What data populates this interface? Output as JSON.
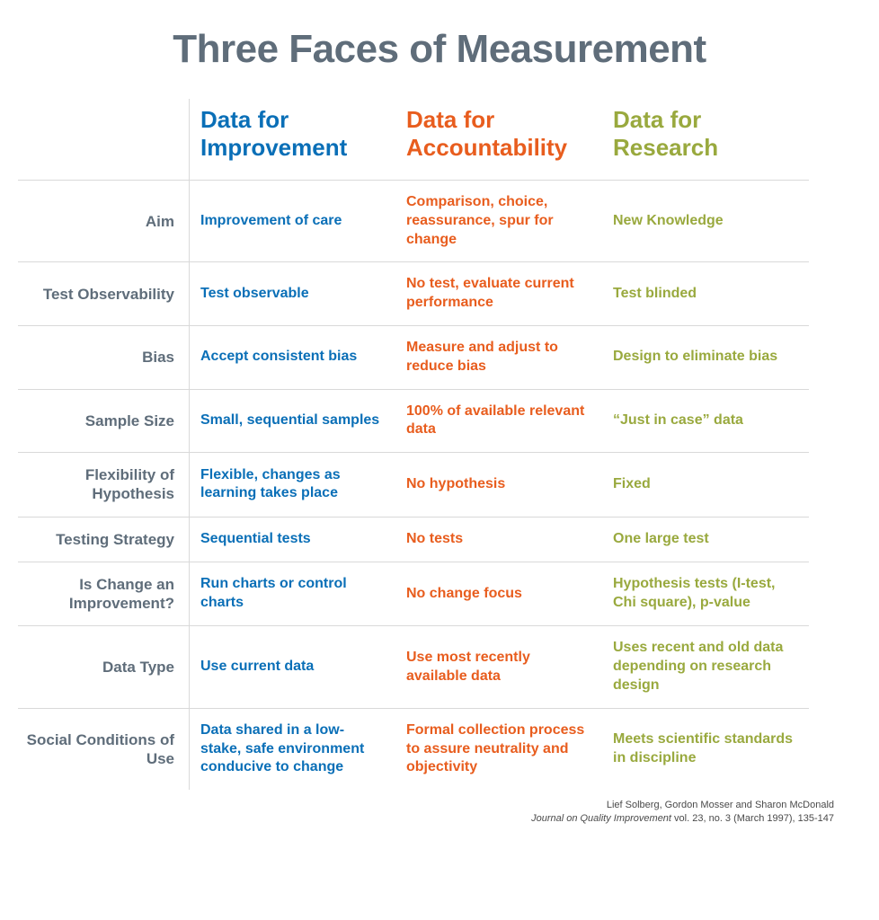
{
  "title": "Three Faces of Measurement",
  "colors": {
    "title": "#5f6d7a",
    "row_label": "#5f6d7a",
    "border": "#d9d9d9",
    "col1": "#0a6fb7",
    "col2": "#e85d1e",
    "col3": "#99a93e",
    "citation": "#4a4a4a"
  },
  "fonts": {
    "title_size": 44,
    "col_header_size": 26,
    "row_label_size": 17,
    "cell_size": 16,
    "citation_size": 11
  },
  "columns": [
    {
      "header": "Data for Improvement"
    },
    {
      "header": "Data for Accountability"
    },
    {
      "header": "Data for Research"
    }
  ],
  "rows": [
    {
      "label": "Aim",
      "cells": [
        "Improvement of care",
        "Comparison, choice, reassurance, spur for change",
        "New Knowledge"
      ]
    },
    {
      "label": "Test Observability",
      "cells": [
        "Test observable",
        "No test, evaluate current performance",
        "Test blinded"
      ]
    },
    {
      "label": "Bias",
      "cells": [
        "Accept consistent bias",
        "Measure and adjust to reduce bias",
        "Design to eliminate bias"
      ]
    },
    {
      "label": "Sample Size",
      "cells": [
        "Small, sequential samples",
        "100% of available relevant data",
        "“Just in case” data"
      ]
    },
    {
      "label": "Flexibility of Hypothesis",
      "cells": [
        "Flexible, changes as learning takes place",
        "No hypothesis",
        "Fixed"
      ]
    },
    {
      "label": "Testing Strategy",
      "cells": [
        "Sequential tests",
        "No tests",
        "One large test"
      ]
    },
    {
      "label": "Is Change an Improvement?",
      "cells": [
        "Run charts or control charts",
        "No change focus",
        "Hypothesis tests (I-test, Chi square), p-value"
      ]
    },
    {
      "label": "Data Type",
      "cells": [
        "Use current data",
        "Use most recently available data",
        "Uses recent and old data depending on research design"
      ]
    },
    {
      "label": "Social Conditions of Use",
      "cells": [
        "Data shared in a low-stake, safe environment conducive to change",
        "Formal collection process to assure neutrality and objectivity",
        "Meets scientific standards in discipline"
      ]
    }
  ],
  "citation": {
    "authors": "Lief Solberg, Gordon Mosser and Sharon McDonald",
    "journal": "Journal on Quality Improvement",
    "details": " vol. 23, no. 3 (March 1997), 135-147"
  }
}
